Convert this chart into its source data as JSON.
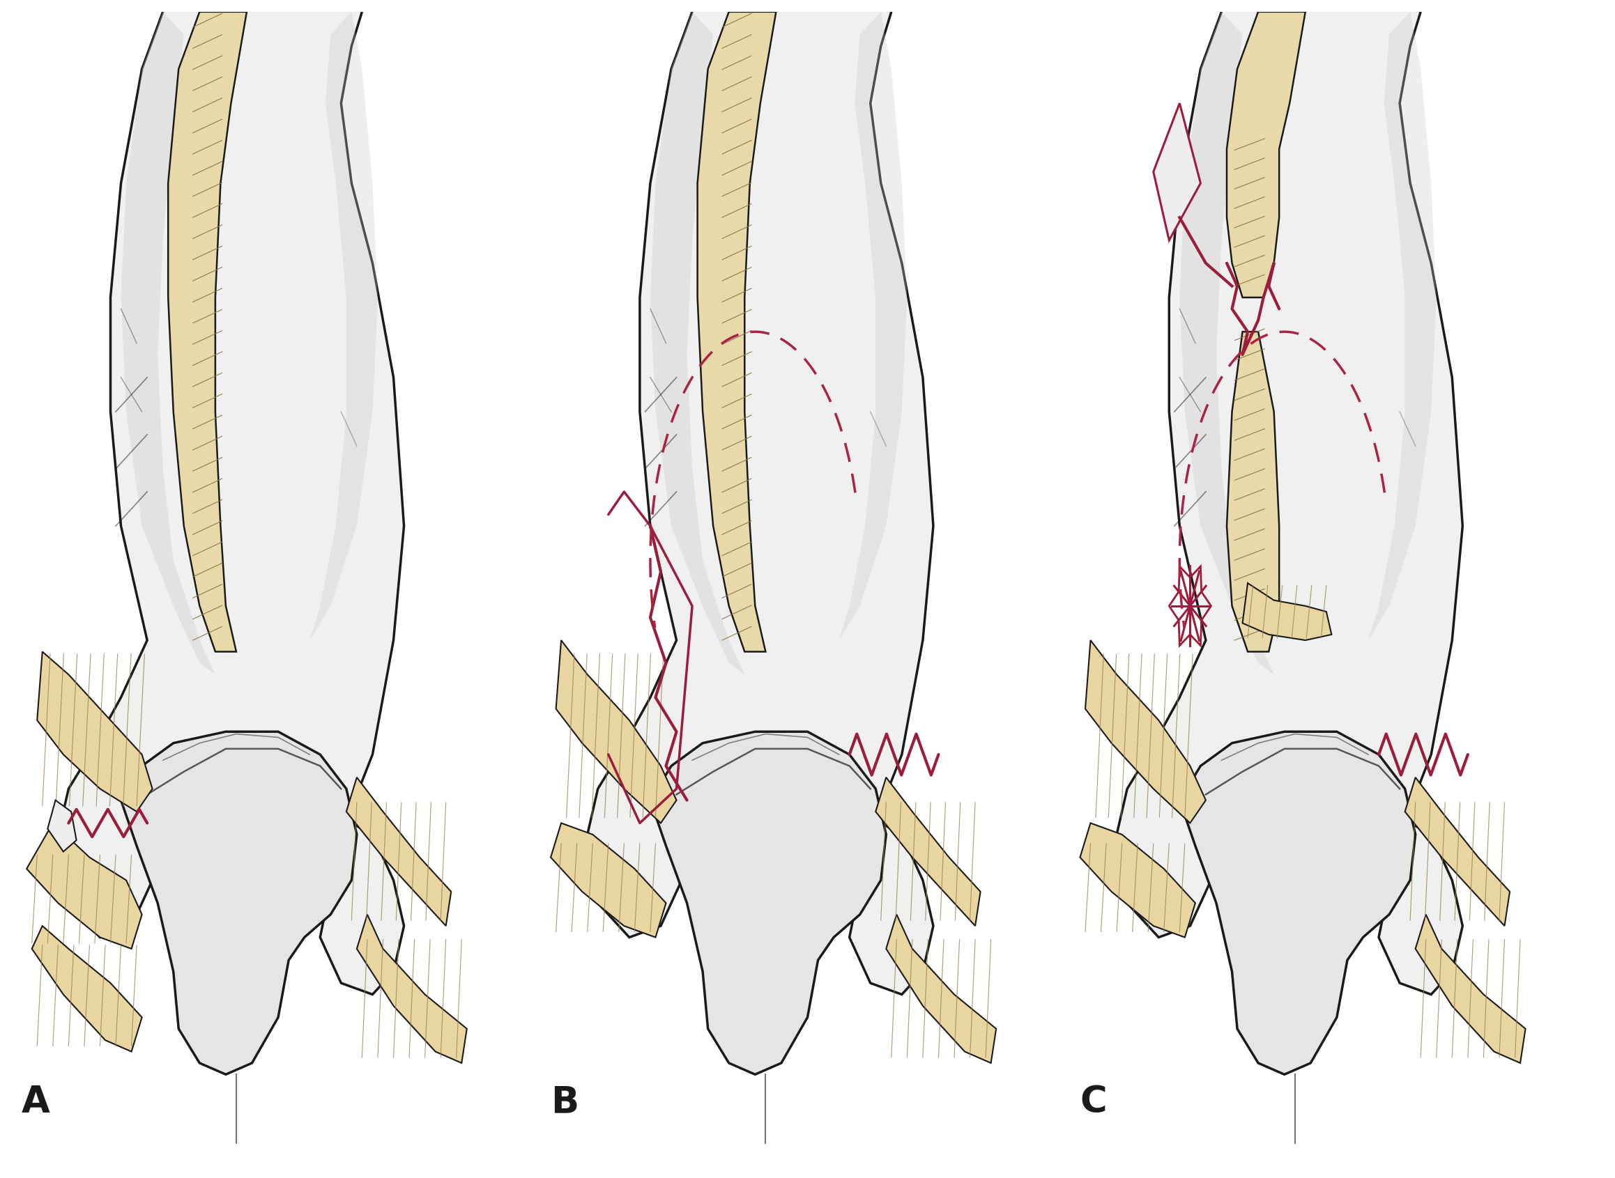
{
  "background_color": "#ffffff",
  "labels": [
    "A",
    "B",
    "C"
  ],
  "label_fontsize": 38,
  "bone_white": "#f0f0f0",
  "bone_edge": "#1a1a1a",
  "bone_shadow": "#c8c8c8",
  "fibula_fill": "#e8d9a8",
  "fibula_edge": "#1a1a1a",
  "fibula_hatch": "#8a7848",
  "tendon_fill": "#e8d5a0",
  "tendon_edge": "#1a1a1a",
  "tendon_hatch": "#9a8050",
  "fracture_solid": "#9b1c3c",
  "fracture_dash": "#aa2244",
  "fig_width": 23.17,
  "fig_height": 16.91
}
